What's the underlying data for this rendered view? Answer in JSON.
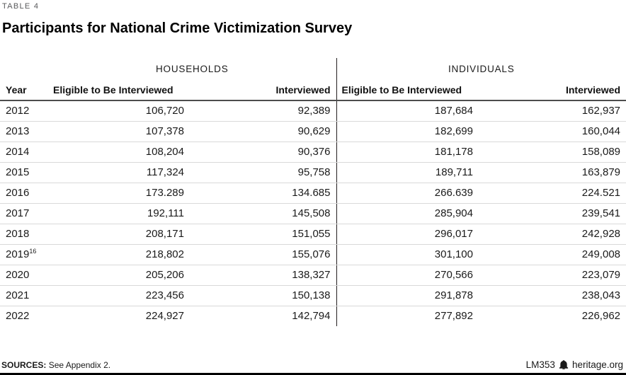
{
  "eyebrow": "TABLE 4",
  "title": "Participants for National Crime Victimization Survey",
  "table": {
    "group_headers": [
      "HOUSEHOLDS",
      "INDIVIDUALS"
    ],
    "column_headers": {
      "year": "Year",
      "eligible": "Eligible to Be Interviewed",
      "interviewed": "Interviewed"
    },
    "rows": [
      {
        "year": "2012",
        "year_sup": "",
        "hh_eligible": "106,720",
        "hh_interviewed": "92,389",
        "ind_eligible": "187,684",
        "ind_interviewed": "162,937"
      },
      {
        "year": "2013",
        "year_sup": "",
        "hh_eligible": "107,378",
        "hh_interviewed": "90,629",
        "ind_eligible": "182,699",
        "ind_interviewed": "160,044"
      },
      {
        "year": "2014",
        "year_sup": "",
        "hh_eligible": "108,204",
        "hh_interviewed": "90,376",
        "ind_eligible": "181,178",
        "ind_interviewed": "158,089"
      },
      {
        "year": "2015",
        "year_sup": "",
        "hh_eligible": "117,324",
        "hh_interviewed": "95,758",
        "ind_eligible": "189,711",
        "ind_interviewed": "163,879"
      },
      {
        "year": "2016",
        "year_sup": "",
        "hh_eligible": "173.289",
        "hh_interviewed": "134.685",
        "ind_eligible": "266.639",
        "ind_interviewed": "224.521"
      },
      {
        "year": "2017",
        "year_sup": "",
        "hh_eligible": "192,111",
        "hh_interviewed": "145,508",
        "ind_eligible": "285,904",
        "ind_interviewed": "239,541"
      },
      {
        "year": "2018",
        "year_sup": "",
        "hh_eligible": "208,171",
        "hh_interviewed": "151,055",
        "ind_eligible": "296,017",
        "ind_interviewed": "242,928"
      },
      {
        "year": "2019",
        "year_sup": "16",
        "hh_eligible": "218,802",
        "hh_interviewed": "155,076",
        "ind_eligible": "301,100",
        "ind_interviewed": "249,008"
      },
      {
        "year": "2020",
        "year_sup": "",
        "hh_eligible": "205,206",
        "hh_interviewed": "138,327",
        "ind_eligible": "270,566",
        "ind_interviewed": "223,079"
      },
      {
        "year": "2021",
        "year_sup": "",
        "hh_eligible": "223,456",
        "hh_interviewed": "150,138",
        "ind_eligible": "291,878",
        "ind_interviewed": "238,043"
      },
      {
        "year": "2022",
        "year_sup": "",
        "hh_eligible": "224,927",
        "hh_interviewed": "142,794",
        "ind_eligible": "277,892",
        "ind_interviewed": "226,962"
      }
    ]
  },
  "footer": {
    "sources_label": "SOURCES:",
    "sources_text": "See Appendix 2.",
    "doc_id": "LM353",
    "brand": "heritage.org",
    "logo_icon": "liberty-bell-icon"
  },
  "colors": {
    "eyebrow": "#58595b",
    "text": "#1a1a1a",
    "header_rule": "#4d4d4d",
    "row_divider": "#d9d9d9",
    "section_divider": "#231f20",
    "bottom_rule": "#000000"
  },
  "chart_data": {
    "type": "table",
    "title": "Participants for National Crime Victimization Survey",
    "table_number": "TABLE 4",
    "column_groups": [
      "HOUSEHOLDS",
      "INDIVIDUALS"
    ],
    "columns": [
      "Year",
      "Households: Eligible to Be Interviewed",
      "Households: Interviewed",
      "Individuals: Eligible to Be Interviewed",
      "Individuals: Interviewed"
    ],
    "rows": [
      [
        "2012",
        "106,720",
        "92,389",
        "187,684",
        "162,937"
      ],
      [
        "2013",
        "107,378",
        "90,629",
        "182,699",
        "160,044"
      ],
      [
        "2014",
        "108,204",
        "90,376",
        "181,178",
        "158,089"
      ],
      [
        "2015",
        "117,324",
        "95,758",
        "189,711",
        "163,879"
      ],
      [
        "2016",
        "173.289",
        "134.685",
        "266.639",
        "224.521"
      ],
      [
        "2017",
        "192,111",
        "145,508",
        "285,904",
        "239,541"
      ],
      [
        "2018",
        "208,171",
        "151,055",
        "296,017",
        "242,928"
      ],
      [
        "2019",
        "218,802",
        "155,076",
        "301,100",
        "249,008"
      ],
      [
        "2020",
        "205,206",
        "138,327",
        "270,566",
        "223,079"
      ],
      [
        "2021",
        "223,456",
        "150,138",
        "291,878",
        "238,043"
      ],
      [
        "2022",
        "224,927",
        "142,794",
        "277,892",
        "226,962"
      ]
    ],
    "footnotes": {
      "2019": "16"
    },
    "source": "SOURCES: See Appendix 2.",
    "credit": "LM353 heritage.org"
  }
}
